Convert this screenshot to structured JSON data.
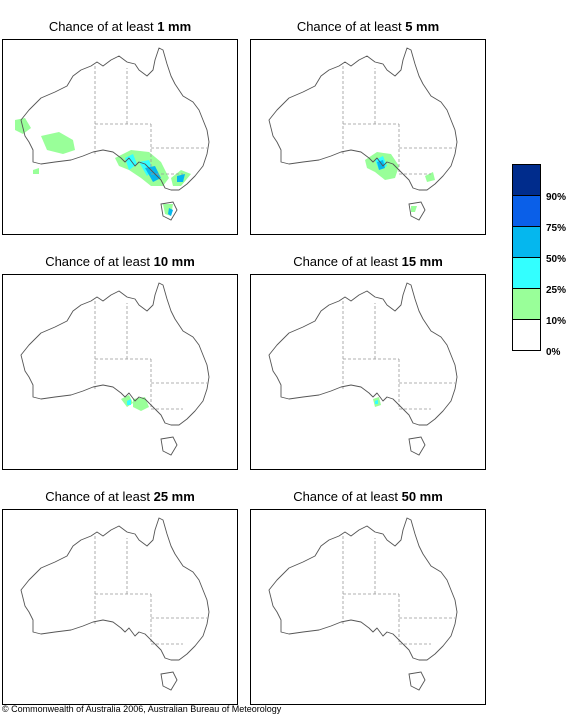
{
  "panels": [
    {
      "title_prefix": "Chance of at least ",
      "amount": "1 mm"
    },
    {
      "title_prefix": "Chance of at least ",
      "amount": "5 mm"
    },
    {
      "title_prefix": "Chance of at least ",
      "amount": "10 mm"
    },
    {
      "title_prefix": "Chance of at least ",
      "amount": "15 mm"
    },
    {
      "title_prefix": "Chance of at least ",
      "amount": "25 mm"
    },
    {
      "title_prefix": "Chance of at least ",
      "amount": "50 mm"
    }
  ],
  "legend": {
    "labels": [
      "90%",
      "75%",
      "50%",
      "25%",
      "10%",
      "0%"
    ],
    "colors": [
      "#002c8c",
      "#0a5fe8",
      "#05b7ee",
      "#33ffff",
      "#99ff99",
      "#ffffff"
    ]
  },
  "footer": "© Commonwealth of Australia 2006, Australian Bureau of Meteorology"
}
